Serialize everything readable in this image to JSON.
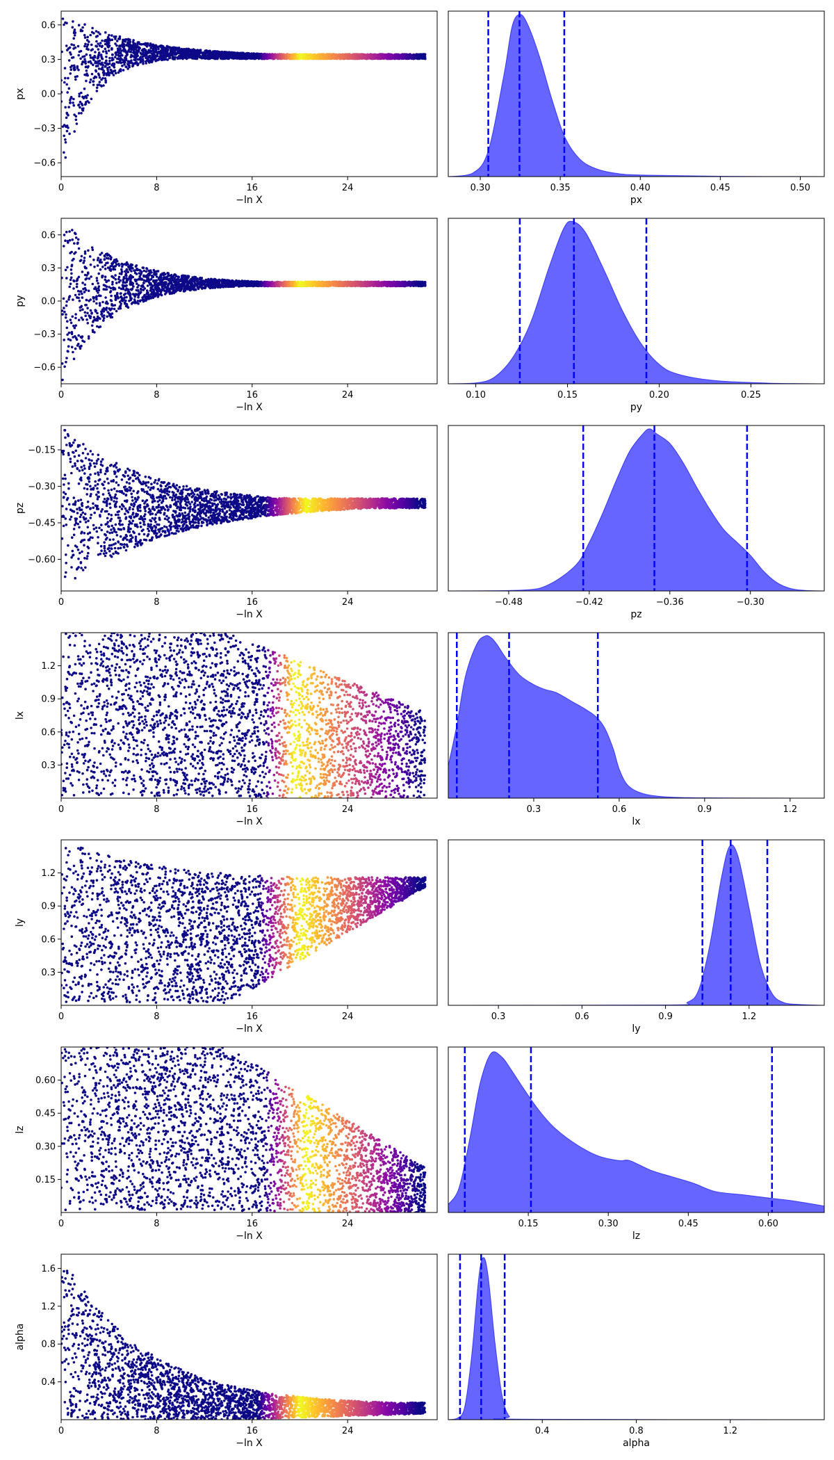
{
  "chart_data": [
    {
      "type": "scatter",
      "panel": "trace",
      "param": "px",
      "xlabel": "−ln X",
      "ylabel": "px",
      "xlim": [
        0,
        31.5
      ],
      "ylim": [
        -0.72,
        0.72
      ],
      "xticks": [
        0,
        8,
        16,
        24
      ],
      "xticklabels": [
        "0",
        "8",
        "16",
        "24"
      ],
      "yticks": [
        0.6,
        0.3,
        0.0,
        -0.3,
        -0.6
      ],
      "yticklabels": [
        "0.6",
        "0.3",
        "0.0",
        "−0.3",
        "−0.6"
      ],
      "colormap": "plasma",
      "shape": {
        "top_start": 0.72,
        "bottom_start": -0.72,
        "converge": 0.325,
        "top_decay": 6,
        "bottom_decay": 2.5,
        "jitter": 0.02,
        "hot_start": 16.5,
        "hot_center": 20,
        "hot_end": 30
      }
    },
    {
      "type": "area",
      "panel": "posterior",
      "param": "px",
      "xlabel": "px",
      "xlim": [
        0.28,
        0.515
      ],
      "ylim": [
        0,
        1.02
      ],
      "xticks": [
        0.3,
        0.35,
        0.4,
        0.45,
        0.5
      ],
      "xticklabels": [
        "0.30",
        "0.35",
        "0.40",
        "0.45",
        "0.50"
      ],
      "density_x": [
        0.28,
        0.295,
        0.305,
        0.315,
        0.32,
        0.325,
        0.33,
        0.337,
        0.345,
        0.353,
        0.362,
        0.372,
        0.385,
        0.4,
        0.45,
        0.515
      ],
      "density_y": [
        0,
        0.02,
        0.16,
        0.64,
        0.93,
        1.0,
        0.93,
        0.74,
        0.47,
        0.24,
        0.11,
        0.05,
        0.02,
        0.01,
        0.002,
        0
      ],
      "quantiles": [
        0.305,
        0.3245,
        0.3525
      ],
      "color": "#0000ff",
      "fill_opacity": 0.6
    },
    {
      "type": "scatter",
      "panel": "trace",
      "param": "py",
      "xlabel": "−ln X",
      "ylabel": "py",
      "xlim": [
        0,
        31.5
      ],
      "ylim": [
        -0.75,
        0.75
      ],
      "xticks": [
        0,
        8,
        16,
        24
      ],
      "xticklabels": [
        "0",
        "8",
        "16",
        "24"
      ],
      "yticks": [
        0.6,
        0.3,
        0.0,
        -0.3,
        -0.6
      ],
      "yticklabels": [
        "0.6",
        "0.3",
        "0.0",
        "−0.3",
        "−0.6"
      ],
      "colormap": "plasma",
      "shape": {
        "top_start": 0.75,
        "bottom_start": -0.75,
        "converge": 0.155,
        "top_decay": 5,
        "bottom_decay": 4,
        "jitter": 0.02,
        "hot_start": 16.5,
        "hot_center": 20,
        "hot_end": 30
      }
    },
    {
      "type": "area",
      "panel": "posterior",
      "param": "py",
      "xlabel": "py",
      "xlim": [
        0.085,
        0.29
      ],
      "ylim": [
        0,
        1.02
      ],
      "xticks": [
        0.1,
        0.15,
        0.2,
        0.25
      ],
      "xticklabels": [
        "0.10",
        "0.15",
        "0.20",
        "0.25"
      ],
      "density_x": [
        0.085,
        0.1,
        0.11,
        0.12,
        0.13,
        0.14,
        0.148,
        0.153,
        0.16,
        0.17,
        0.18,
        0.19,
        0.2,
        0.21,
        0.23,
        0.26,
        0.29
      ],
      "density_y": [
        0,
        0.005,
        0.04,
        0.16,
        0.38,
        0.72,
        0.96,
        1.0,
        0.93,
        0.7,
        0.45,
        0.25,
        0.12,
        0.06,
        0.02,
        0.004,
        0
      ],
      "quantiles": [
        0.124,
        0.1535,
        0.193
      ],
      "color": "#0000ff",
      "fill_opacity": 0.6
    },
    {
      "type": "scatter",
      "panel": "trace",
      "param": "pz",
      "xlabel": "−ln X",
      "ylabel": "pz",
      "xlim": [
        0,
        31.5
      ],
      "ylim": [
        -0.73,
        -0.05
      ],
      "xticks": [
        0,
        8,
        16,
        24
      ],
      "xticklabels": [
        "0",
        "8",
        "16",
        "24"
      ],
      "yticks": [
        -0.15,
        -0.3,
        -0.45,
        -0.6
      ],
      "yticklabels": [
        "−0.15",
        "−0.30",
        "−0.45",
        "−0.60"
      ],
      "colormap": "plasma",
      "shape": {
        "top_start": -0.05,
        "bottom_start": -0.73,
        "converge": -0.37,
        "top_decay": 7,
        "bottom_decay": 9,
        "jitter": 0.02,
        "hot_start": 17,
        "hot_center": 20.5,
        "hot_end": 30
      }
    },
    {
      "type": "area",
      "panel": "posterior",
      "param": "pz",
      "xlabel": "pz",
      "xlim": [
        -0.525,
        -0.245
      ],
      "ylim": [
        0,
        1.02
      ],
      "xticks": [
        -0.48,
        -0.42,
        -0.36,
        -0.3
      ],
      "xticklabels": [
        "−0.48",
        "−0.42",
        "−0.36",
        "−0.30"
      ],
      "density_x": [
        -0.525,
        -0.47,
        -0.45,
        -0.43,
        -0.42,
        -0.41,
        -0.4,
        -0.39,
        -0.38,
        -0.375,
        -0.37,
        -0.36,
        -0.35,
        -0.34,
        -0.33,
        -0.32,
        -0.31,
        -0.3,
        -0.29,
        -0.28,
        -0.27,
        -0.26,
        -0.245
      ],
      "density_y": [
        0,
        0.005,
        0.04,
        0.16,
        0.3,
        0.48,
        0.68,
        0.86,
        0.97,
        1.0,
        0.97,
        0.91,
        0.79,
        0.64,
        0.5,
        0.38,
        0.3,
        0.22,
        0.12,
        0.05,
        0.015,
        0.004,
        0
      ],
      "quantiles": [
        -0.4245,
        -0.3715,
        -0.3025
      ],
      "color": "#0000ff",
      "fill_opacity": 0.6
    },
    {
      "type": "scatter",
      "panel": "trace",
      "param": "lx",
      "xlabel": "−ln X",
      "ylabel": "lx",
      "xlim": [
        0,
        31.5
      ],
      "ylim": [
        0.0,
        1.5
      ],
      "xticks": [
        0,
        8,
        16,
        24
      ],
      "xticklabels": [
        "0",
        "8",
        "16",
        "24"
      ],
      "yticks": [
        1.2,
        0.9,
        0.6,
        0.3
      ],
      "yticklabels": [
        "1.2",
        "0.9",
        "0.6",
        "0.3"
      ],
      "colormap": "plasma",
      "shape": {
        "top_start": 1.5,
        "bottom_start": 0.02,
        "converge": 0.35,
        "top_decay": 0,
        "bottom_decay": 0,
        "jitter": 0.15,
        "hot_start": 17,
        "hot_center": 19.5,
        "hot_end": 30
      }
    },
    {
      "type": "area",
      "panel": "posterior",
      "param": "lx",
      "xlabel": "lx",
      "xlim": [
        0.0,
        1.32
      ],
      "ylim": [
        0,
        1.02
      ],
      "xticks": [
        0.3,
        0.6,
        0.9,
        1.2
      ],
      "xticklabels": [
        "0.3",
        "0.6",
        "0.9",
        "1.2"
      ],
      "density_x": [
        0.0,
        0.03,
        0.06,
        0.1,
        0.13,
        0.15,
        0.17,
        0.2,
        0.25,
        0.3,
        0.34,
        0.38,
        0.43,
        0.48,
        0.52,
        0.55,
        0.58,
        0.6,
        0.63,
        0.68,
        0.75,
        0.85,
        1.0,
        1.32
      ],
      "density_y": [
        0.2,
        0.45,
        0.75,
        0.95,
        1.0,
        0.99,
        0.95,
        0.87,
        0.76,
        0.7,
        0.67,
        0.65,
        0.6,
        0.55,
        0.5,
        0.43,
        0.3,
        0.18,
        0.08,
        0.03,
        0.01,
        0.003,
        0.001,
        0
      ],
      "quantiles": [
        0.03,
        0.2135,
        0.525
      ],
      "color": "#0000ff",
      "fill_opacity": 0.6
    },
    {
      "type": "scatter",
      "panel": "trace",
      "param": "ly",
      "xlabel": "−ln X",
      "ylabel": "ly",
      "xlim": [
        0,
        31.5
      ],
      "ylim": [
        0.0,
        1.5
      ],
      "xticks": [
        0,
        8,
        16,
        24
      ],
      "xticklabels": [
        "0",
        "8",
        "16",
        "24"
      ],
      "yticks": [
        1.2,
        0.9,
        0.6,
        0.3
      ],
      "yticklabels": [
        "1.2",
        "0.9",
        "0.6",
        "0.3"
      ],
      "colormap": "plasma",
      "shape": {
        "top_start": 1.5,
        "bottom_start": 0.02,
        "converge": 1.13,
        "top_decay": 8,
        "bottom_decay": 0,
        "jitter": 0.03,
        "hot_start": 16.5,
        "hot_center": 20,
        "hot_end": 30
      }
    },
    {
      "type": "area",
      "panel": "posterior",
      "param": "ly",
      "xlabel": "ly",
      "xlim": [
        0.12,
        1.47
      ],
      "ylim": [
        0,
        1.02
      ],
      "xticks": [
        0.3,
        0.6,
        0.9,
        1.2
      ],
      "xticklabels": [
        "0.3",
        "0.6",
        "0.9",
        "1.2"
      ],
      "density_x": [
        0.12,
        0.9,
        0.98,
        1.02,
        1.06,
        1.1,
        1.13,
        1.16,
        1.2,
        1.24,
        1.28,
        1.32,
        1.38,
        1.47
      ],
      "density_y": [
        0,
        0.002,
        0.02,
        0.1,
        0.38,
        0.78,
        0.98,
        0.92,
        0.6,
        0.26,
        0.08,
        0.02,
        0.005,
        0
      ],
      "quantiles": [
        1.0325,
        1.134,
        1.2655
      ],
      "color": "#0000ff",
      "fill_opacity": 0.6
    },
    {
      "type": "scatter",
      "panel": "trace",
      "param": "lz",
      "xlabel": "−ln X",
      "ylabel": "lz",
      "xlim": [
        0,
        31.5
      ],
      "ylim": [
        0.0,
        0.75
      ],
      "xticks": [
        0,
        8,
        16,
        24
      ],
      "xticklabels": [
        "0",
        "8",
        "16",
        "24"
      ],
      "yticks": [
        0.6,
        0.45,
        0.3,
        0.15
      ],
      "yticklabels": [
        "0.60",
        "0.45",
        "0.30",
        "0.15"
      ],
      "colormap": "plasma",
      "shape": {
        "top_start": 0.75,
        "bottom_start": 0.01,
        "converge": 0.1,
        "top_decay": 0,
        "bottom_decay": 0,
        "jitter": 0.04,
        "hot_start": 17,
        "hot_center": 20.5,
        "hot_end": 30
      }
    },
    {
      "type": "area",
      "panel": "posterior",
      "param": "lz",
      "xlabel": "lz",
      "xlim": [
        0.0,
        0.705
      ],
      "ylim": [
        0,
        1.02
      ],
      "xticks": [
        0.15,
        0.3,
        0.45,
        0.6
      ],
      "xticklabels": [
        "0.15",
        "0.30",
        "0.45",
        "0.60"
      ],
      "density_x": [
        0.0,
        0.02,
        0.04,
        0.06,
        0.08,
        0.1,
        0.12,
        0.14,
        0.17,
        0.2,
        0.24,
        0.28,
        0.32,
        0.34,
        0.38,
        0.42,
        0.46,
        0.5,
        0.55,
        0.6,
        0.65,
        0.705
      ],
      "density_y": [
        0.05,
        0.15,
        0.45,
        0.8,
        0.98,
        0.96,
        0.87,
        0.77,
        0.63,
        0.52,
        0.42,
        0.35,
        0.32,
        0.32,
        0.26,
        0.22,
        0.18,
        0.13,
        0.11,
        0.09,
        0.07,
        0.04
      ],
      "quantiles": [
        0.031,
        0.155,
        0.607
      ],
      "color": "#0000ff",
      "fill_opacity": 0.6
    },
    {
      "type": "scatter",
      "panel": "trace",
      "param": "alpha",
      "xlabel": "−ln X",
      "ylabel": "alpha",
      "xlim": [
        0,
        31.5
      ],
      "ylim": [
        0.0,
        1.75
      ],
      "xticks": [
        0,
        8,
        16,
        24
      ],
      "xticklabels": [
        "0",
        "8",
        "16",
        "24"
      ],
      "yticks": [
        1.6,
        1.2,
        0.8,
        0.4
      ],
      "yticklabels": [
        "1.6",
        "1.2",
        "0.8",
        "0.4"
      ],
      "colormap": "plasma",
      "shape": {
        "top_start": 1.75,
        "bottom_start": 0.0,
        "converge": 0.15,
        "top_decay": 7,
        "bottom_decay": 0,
        "jitter": 0.03,
        "hot_start": 16.5,
        "hot_center": 20,
        "hot_end": 30
      }
    },
    {
      "type": "area",
      "panel": "posterior",
      "param": "alpha",
      "xlabel": "alpha",
      "xlim": [
        0.0,
        1.6
      ],
      "ylim": [
        0,
        1.02
      ],
      "xticks": [
        0.4,
        0.8,
        1.2
      ],
      "xticklabels": [
        "0.4",
        "0.8",
        "1.2"
      ],
      "density_x": [
        0.0,
        0.04,
        0.07,
        0.1,
        0.13,
        0.15,
        0.17,
        0.2,
        0.23,
        0.26,
        0.3,
        1.6
      ],
      "density_y": [
        0,
        0.01,
        0.08,
        0.4,
        0.88,
        1.0,
        0.88,
        0.46,
        0.14,
        0.02,
        0.003,
        0
      ],
      "quantiles": [
        0.05,
        0.14,
        0.24
      ],
      "color": "#0000ff",
      "fill_opacity": 0.6
    }
  ]
}
